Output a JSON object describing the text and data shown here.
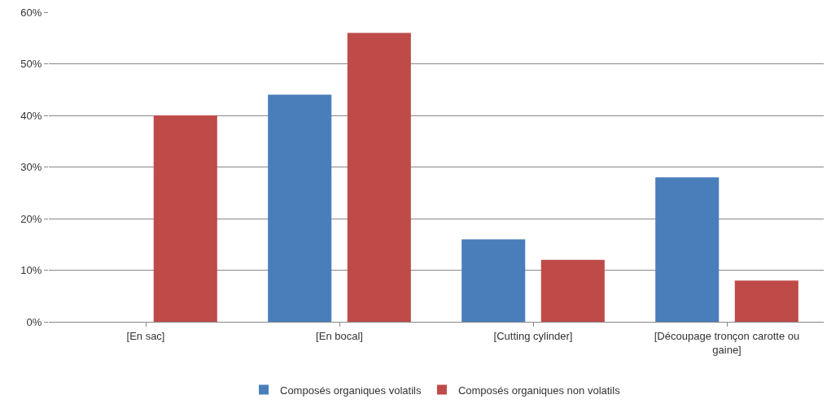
{
  "chart_data": {
    "type": "bar",
    "categories": [
      "[En sac]",
      "[En bocal]",
      "[Cutting cylinder]",
      "[Découpage tronçon carotte ou gaine]"
    ],
    "series": [
      {
        "name": "Composés organiques volatils",
        "color": "#4a7ebb",
        "values": [
          0,
          44,
          16,
          28
        ]
      },
      {
        "name": "Composés organiques non volatils",
        "color": "#be4b48",
        "values": [
          40,
          56,
          12,
          8
        ]
      }
    ],
    "ylim": [
      0,
      60
    ],
    "yticks": [
      {
        "value": 0,
        "label": "0%"
      },
      {
        "value": 10,
        "label": "10%"
      },
      {
        "value": 20,
        "label": "20%"
      },
      {
        "value": 30,
        "label": "30%"
      },
      {
        "value": 40,
        "label": "40%"
      },
      {
        "value": 50,
        "label": "50%"
      },
      {
        "value": 60,
        "label": "60%"
      }
    ],
    "grid": "y",
    "legend": "bottom"
  }
}
